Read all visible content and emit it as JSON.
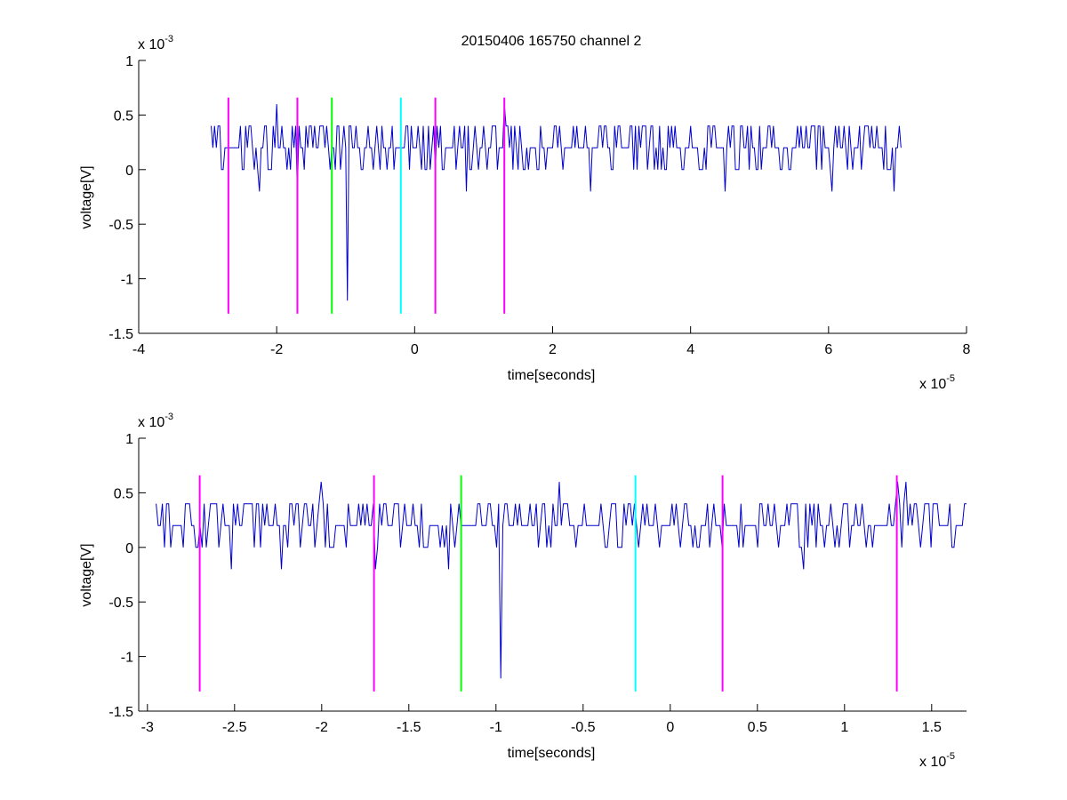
{
  "figure_title": "20150406 165750 channel 2",
  "colors": {
    "signal": "#0000cc",
    "marker_magenta": "#ff00ff",
    "marker_green": "#00ff00",
    "marker_cyan": "#00ffff",
    "axis": "#000000"
  },
  "chart_data": [
    {
      "type": "line",
      "title": "20150406 165750 channel 2",
      "xlabel": "time[seconds]",
      "ylabel": "voltage[V]",
      "x_multiplier": "x 10",
      "x_exponent": "-5",
      "y_multiplier": "x 10",
      "y_exponent": "-3",
      "xlim": [
        -4,
        8
      ],
      "ylim": [
        -1.5,
        1
      ],
      "x_ticks": [
        -4,
        -2,
        0,
        2,
        4,
        6,
        8
      ],
      "x_tick_labels": [
        "-4",
        "-2",
        "0",
        "2",
        "4",
        "6",
        "8"
      ],
      "y_ticks": [
        -1.5,
        -1,
        -0.5,
        0,
        0.5,
        1
      ],
      "y_tick_labels": [
        "-1.5",
        "-1",
        "-0.5",
        "0",
        "0.5",
        "1"
      ],
      "grid": false,
      "series": [
        {
          "x_range": [
            -2.95,
            7.05
          ],
          "baseline": 0.2,
          "levels": [
            0,
            0.2,
            0.4
          ],
          "dips": [
            {
              "x": -0.97,
              "y": -1.2
            },
            {
              "x": -1.7,
              "y": -0.2
            },
            {
              "x": -2.25,
              "y": -0.2
            },
            {
              "x": 0.75,
              "y": -0.2
            },
            {
              "x": 2.55,
              "y": -0.2
            },
            {
              "x": 4.5,
              "y": -0.2
            },
            {
              "x": 6.05,
              "y": -0.2
            },
            {
              "x": 6.95,
              "y": -0.2
            }
          ],
          "peaks": [
            {
              "x": -2.0,
              "y": 0.6
            },
            {
              "x": 1.3,
              "y": 0.6
            }
          ]
        }
      ],
      "markers": [
        {
          "x": -2.7,
          "color": "magenta",
          "y_range": [
            -1.32,
            0.66
          ]
        },
        {
          "x": -1.7,
          "color": "magenta",
          "y_range": [
            -1.32,
            0.66
          ]
        },
        {
          "x": -1.2,
          "color": "green",
          "y_range": [
            -1.32,
            0.66
          ]
        },
        {
          "x": -0.2,
          "color": "cyan",
          "y_range": [
            -1.32,
            0.66
          ]
        },
        {
          "x": 0.3,
          "color": "magenta",
          "y_range": [
            -1.32,
            0.66
          ]
        },
        {
          "x": 1.3,
          "color": "magenta",
          "y_range": [
            -1.32,
            0.66
          ]
        }
      ]
    },
    {
      "type": "line",
      "title": "",
      "xlabel": "time[seconds]",
      "ylabel": "voltage[V]",
      "x_multiplier": "x 10",
      "x_exponent": "-5",
      "y_multiplier": "x 10",
      "y_exponent": "-3",
      "xlim": [
        -3.05,
        1.7
      ],
      "ylim": [
        -1.5,
        1
      ],
      "x_ticks": [
        -3,
        -2.5,
        -2,
        -1.5,
        -1,
        -0.5,
        0,
        0.5,
        1,
        1.5
      ],
      "x_tick_labels": [
        "-3",
        "-2.5",
        "-2",
        "-1.5",
        "-1",
        "-0.5",
        "0",
        "0.5",
        "1",
        "1.5"
      ],
      "y_ticks": [
        -1.5,
        -1,
        -0.5,
        0,
        0.5,
        1
      ],
      "y_tick_labels": [
        "-1.5",
        "-1",
        "-0.5",
        "0",
        "0.5",
        "1"
      ],
      "grid": false,
      "series": [
        {
          "x_range": [
            -2.95,
            1.7
          ],
          "baseline": 0.2,
          "levels": [
            0,
            0.2,
            0.4
          ],
          "dips": [
            {
              "x": -0.97,
              "y": -1.2
            },
            {
              "x": -2.52,
              "y": -0.2
            },
            {
              "x": -2.23,
              "y": -0.2
            },
            {
              "x": -1.69,
              "y": -0.2
            },
            {
              "x": -1.27,
              "y": -0.2
            },
            {
              "x": 0.76,
              "y": -0.2
            }
          ],
          "peaks": [
            {
              "x": -2.0,
              "y": 0.6
            },
            {
              "x": -0.64,
              "y": 0.6
            },
            {
              "x": 1.3,
              "y": 0.6
            },
            {
              "x": 1.35,
              "y": 0.6
            }
          ]
        }
      ],
      "markers": [
        {
          "x": -2.7,
          "color": "magenta",
          "y_range": [
            -1.32,
            0.66
          ]
        },
        {
          "x": -1.7,
          "color": "magenta",
          "y_range": [
            -1.32,
            0.66
          ]
        },
        {
          "x": -1.2,
          "color": "green",
          "y_range": [
            -1.32,
            0.66
          ]
        },
        {
          "x": -0.2,
          "color": "cyan",
          "y_range": [
            -1.32,
            0.66
          ]
        },
        {
          "x": 0.3,
          "color": "magenta",
          "y_range": [
            -1.32,
            0.66
          ]
        },
        {
          "x": 1.3,
          "color": "magenta",
          "y_range": [
            -1.32,
            0.66
          ]
        }
      ]
    }
  ]
}
